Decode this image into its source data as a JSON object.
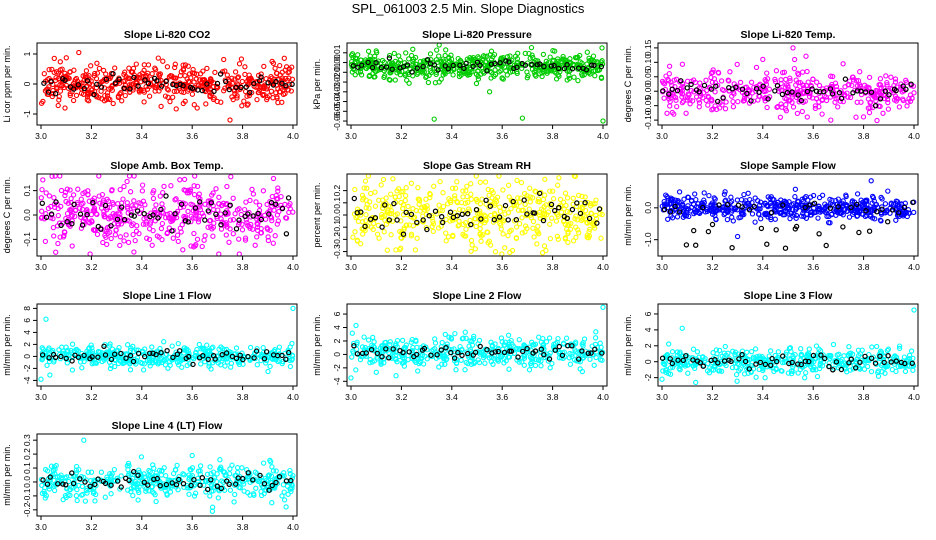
{
  "page_title": "SPL_061003  2.5 Min. Slope Diagnostics",
  "chart_data": [
    {
      "type": "scatter",
      "title": "Slope Li-820 CO2",
      "ylabel": "Li cor ppm per min.",
      "color": "#ff0000",
      "xlim": [
        3.0,
        4.0
      ],
      "ylim": [
        -1.3,
        1.3
      ],
      "xticks": [
        "3.0",
        "3.2",
        "3.4",
        "3.6",
        "3.8",
        "4.0"
      ],
      "yticks": [
        -1,
        0,
        1
      ],
      "ytick_labels": [
        "-1",
        "0",
        "1"
      ],
      "n_points": 520,
      "spread": 0.32,
      "center": 0.0,
      "outliers": [
        [
          3.15,
          1.05
        ],
        [
          3.75,
          -1.2
        ],
        [
          3.62,
          -0.8
        ]
      ]
    },
    {
      "type": "scatter",
      "title": "Slope Li-820 Pressure",
      "ylabel": "kPa per min.",
      "color": "#00cc00",
      "xlim": [
        3.0,
        4.0
      ],
      "ylim": [
        -0.062,
        0.018
      ],
      "xticks": [
        "3.0",
        "3.2",
        "3.4",
        "3.6",
        "3.8",
        "4.0"
      ],
      "yticks": [
        0.01,
        0.0,
        -0.01,
        -0.02,
        -0.03,
        -0.04,
        -0.05,
        -0.06
      ],
      "ytick_labels": [
        "0.01",
        "0.00",
        "-0.01",
        "-0.02",
        "-0.03",
        "-0.04",
        "-0.05",
        "-0.06"
      ],
      "n_points": 520,
      "spread": 0.0065,
      "center": -0.004,
      "outliers": [
        [
          3.33,
          -0.058
        ],
        [
          3.68,
          -0.057
        ],
        [
          4.0,
          -0.06
        ],
        [
          3.1,
          0.012
        ],
        [
          3.55,
          -0.03
        ]
      ]
    },
    {
      "type": "scatter",
      "title": "Slope Li-820 Temp.",
      "ylabel": "degrees C per min.",
      "color": "#ff00ff",
      "xlim": [
        3.0,
        4.0
      ],
      "ylim": [
        -0.11,
        0.16
      ],
      "xticks": [
        "3.0",
        "3.2",
        "3.4",
        "3.6",
        "3.8",
        "4.0"
      ],
      "yticks": [
        0.15,
        0.1,
        0.05,
        0.0,
        -0.05,
        -0.1
      ],
      "ytick_labels": [
        "0.15",
        "0.10",
        "0.05",
        "0.00",
        "-0.05",
        "-0.10"
      ],
      "n_points": 420,
      "spread": 0.035,
      "center": 0.0,
      "outliers": [
        [
          3.52,
          0.15
        ],
        [
          3.4,
          0.11
        ],
        [
          3.67,
          -0.1
        ],
        [
          3.77,
          -0.09
        ]
      ]
    },
    {
      "type": "scatter",
      "title": "Slope Amb. Box Temp.",
      "ylabel": "degrees C per min.",
      "color": "#ff00ff",
      "xlim": [
        3.0,
        4.0
      ],
      "ylim": [
        -0.16,
        0.16
      ],
      "xticks": [
        "3.0",
        "3.2",
        "3.4",
        "3.6",
        "3.8",
        "4.0"
      ],
      "yticks": [
        0.1,
        0.0,
        -0.1
      ],
      "ytick_labels": [
        "0.1",
        "0.0",
        "-0.1"
      ],
      "n_points": 480,
      "spread": 0.07,
      "center": 0.0,
      "outliers": []
    },
    {
      "type": "scatter",
      "title": "Slope Gas Stream RH",
      "ylabel": "percent per min.",
      "color": "#ffff00",
      "xlim": [
        3.0,
        4.0
      ],
      "ylim": [
        -0.32,
        0.32
      ],
      "xticks": [
        "3.0",
        "3.2",
        "3.4",
        "3.6",
        "3.8",
        "4.0"
      ],
      "yticks": [
        0.2,
        0.1,
        0.0,
        -0.1,
        -0.2,
        -0.3
      ],
      "ytick_labels": [
        "0.2",
        "0.1",
        "0.0",
        "-0.1",
        "-0.2",
        "-0.3"
      ],
      "n_points": 480,
      "spread": 0.13,
      "center": 0.0,
      "outliers": []
    },
    {
      "type": "scatter",
      "title": "Slope Sample Flow",
      "ylabel": "ml/min per min.",
      "color": "#0000ff",
      "xlim": [
        3.0,
        4.0
      ],
      "ylim": [
        -1.45,
        1.0
      ],
      "xticks": [
        "3.0",
        "3.2",
        "3.4",
        "3.6",
        "3.8",
        "4.0"
      ],
      "yticks": [
        0,
        -1
      ],
      "ytick_labels": [
        "0.0",
        "-1.0"
      ],
      "n_points": 500,
      "spread": 0.18,
      "center": 0.0,
      "outliers": [
        [
          3.3,
          -0.9
        ],
        [
          3.07,
          0.5
        ],
        [
          3.83,
          0.85
        ]
      ]
    },
    {
      "type": "scatter",
      "title": "Slope Line 1 Flow",
      "ylabel": "ml/min per min.",
      "color": "#00ffff",
      "xlim": [
        3.0,
        4.0
      ],
      "ylim": [
        -4.6,
        8.4
      ],
      "xticks": [
        "3.0",
        "3.2",
        "3.4",
        "3.6",
        "3.8",
        "4.0"
      ],
      "yticks": [
        -4,
        -2,
        0,
        2,
        4,
        6,
        8
      ],
      "ytick_labels": [
        "-4",
        "-2",
        "0",
        "2",
        "4",
        "6",
        "8"
      ],
      "n_points": 430,
      "spread": 0.9,
      "center": 0.0,
      "outliers": [
        [
          3.02,
          6.2
        ],
        [
          3.0,
          -3.8
        ],
        [
          4.0,
          8.0
        ]
      ]
    },
    {
      "type": "scatter",
      "title": "Slope Line 2 Flow",
      "ylabel": "ml/min per min.",
      "color": "#00ffff",
      "xlim": [
        3.0,
        4.0
      ],
      "ylim": [
        -4.4,
        7.2
      ],
      "xticks": [
        "3.0",
        "3.2",
        "3.4",
        "3.6",
        "3.8",
        "4.0"
      ],
      "yticks": [
        -4,
        -2,
        0,
        2,
        4,
        6
      ],
      "ytick_labels": [
        "-4",
        "-2",
        "0",
        "2",
        "4",
        "6"
      ],
      "n_points": 430,
      "spread": 1.1,
      "center": 0.3,
      "outliers": [
        [
          3.02,
          4.3
        ],
        [
          3.0,
          -3.5
        ],
        [
          4.0,
          7.0
        ]
      ]
    },
    {
      "type": "scatter",
      "title": "Slope Line 3 Flow",
      "ylabel": "ml/min per min.",
      "color": "#00ffff",
      "xlim": [
        3.0,
        4.0
      ],
      "ylim": [
        -2.8,
        7.0
      ],
      "xticks": [
        "3.0",
        "3.2",
        "3.4",
        "3.6",
        "3.8",
        "4.0"
      ],
      "yticks": [
        -2,
        0,
        2,
        4,
        6
      ],
      "ytick_labels": [
        "-2",
        "0",
        "2",
        "4",
        "6"
      ],
      "n_points": 430,
      "spread": 0.8,
      "center": 0.0,
      "outliers": [
        [
          3.08,
          4.2
        ],
        [
          4.0,
          6.5
        ],
        [
          3.0,
          -2.2
        ]
      ]
    },
    {
      "type": "scatter",
      "title": "Slope Line 4 (LT) Flow",
      "ylabel": "ml/min per min.",
      "color": "#00ffff",
      "xlim": [
        3.0,
        4.0
      ],
      "ylim": [
        -0.23,
        0.33
      ],
      "xticks": [
        "3.0",
        "3.2",
        "3.4",
        "3.6",
        "3.8",
        "4.0"
      ],
      "yticks": [
        0.3,
        0.2,
        0.1,
        0.0,
        -0.1,
        -0.2
      ],
      "ytick_labels": [
        "0.3",
        "0.2",
        "0.1",
        "0.0",
        "-0.1",
        "-0.2"
      ],
      "n_points": 430,
      "spread": 0.06,
      "center": 0.0,
      "outliers": [
        [
          3.17,
          0.3
        ],
        [
          3.68,
          -0.21
        ],
        [
          3.6,
          0.19
        ]
      ]
    }
  ],
  "overlay_color": "#000000"
}
